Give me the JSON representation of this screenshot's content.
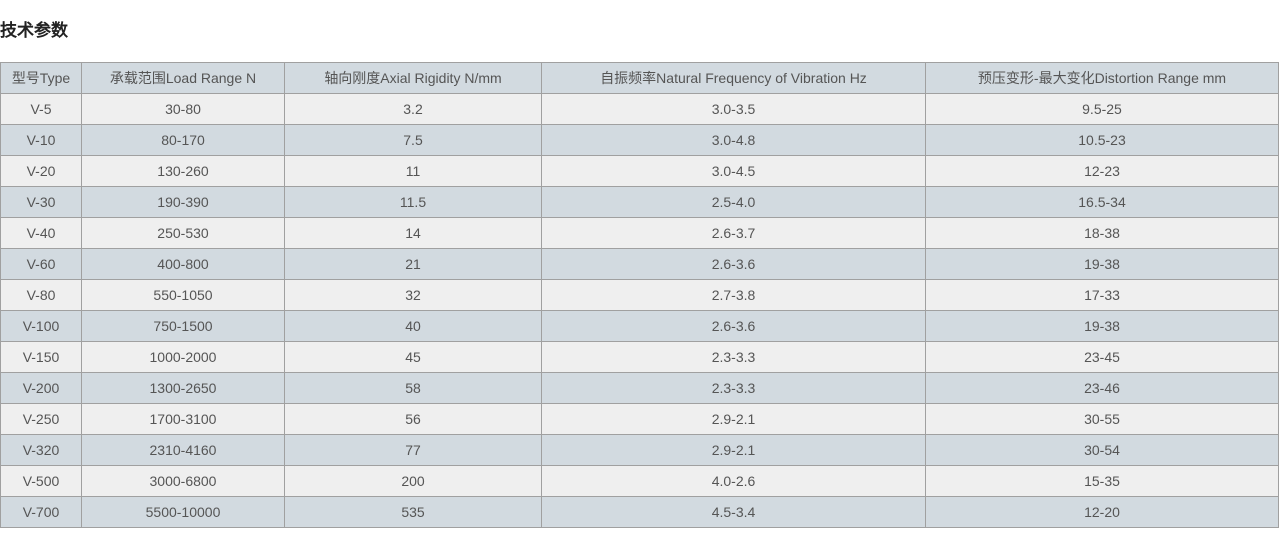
{
  "title": "技术参数",
  "columns": [
    "型号Type",
    "承载范围Load Range N",
    "轴向刚度Axial Rigidity N/mm",
    "自振频率Natural Frequency of Vibration Hz",
    "预压变形-最大变化Distortion Range mm"
  ],
  "rows": [
    [
      "V-5",
      "30-80",
      "3.2",
      "3.0-3.5",
      "9.5-25"
    ],
    [
      "V-10",
      "80-170",
      "7.5",
      "3.0-4.8",
      "10.5-23"
    ],
    [
      "V-20",
      "130-260",
      "11",
      "3.0-4.5",
      "12-23"
    ],
    [
      "V-30",
      "190-390",
      "11.5",
      "2.5-4.0",
      "16.5-34"
    ],
    [
      "V-40",
      "250-530",
      "14",
      "2.6-3.7",
      "18-38"
    ],
    [
      "V-60",
      "400-800",
      "21",
      "2.6-3.6",
      "19-38"
    ],
    [
      "V-80",
      "550-1050",
      "32",
      "2.7-3.8",
      "17-33"
    ],
    [
      "V-100",
      "750-1500",
      "40",
      "2.6-3.6",
      "19-38"
    ],
    [
      "V-150",
      "1000-2000",
      "45",
      "2.3-3.3",
      "23-45"
    ],
    [
      "V-200",
      "1300-2650",
      "58",
      "2.3-3.3",
      "23-46"
    ],
    [
      "V-250",
      "1700-3100",
      "56",
      "2.9-2.1",
      "30-55"
    ],
    [
      "V-320",
      "2310-4160",
      "77",
      "2.9-2.1",
      "30-54"
    ],
    [
      "V-500",
      "3000-6800",
      "200",
      "4.0-2.6",
      "15-35"
    ],
    [
      "V-700",
      "5500-10000",
      "535",
      "4.5-3.4",
      "12-20"
    ]
  ]
}
